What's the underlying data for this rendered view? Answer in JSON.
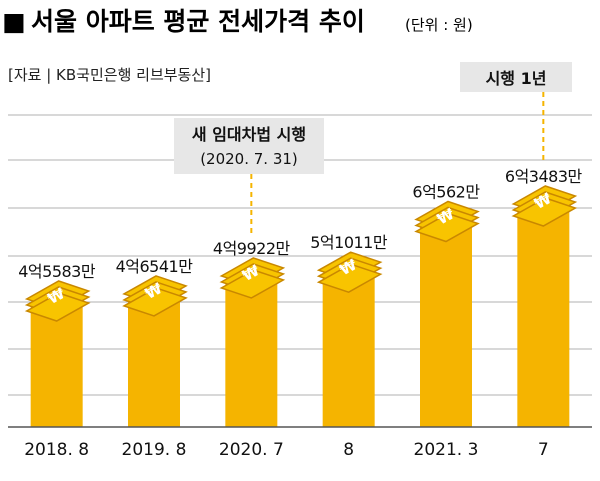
{
  "header": {
    "square": "■",
    "title": "서울 아파트 평균 전세가격 추이",
    "unit": "(단위 : 원)"
  },
  "source": "[자료 | KB국민은행 리브부동산]",
  "colors": {
    "bar": "#f5b400",
    "money": "#f8c400",
    "money_dark": "#c98800",
    "callout_bg": "#e7e7e7",
    "grid": "#b0b0b0",
    "text": "#111111"
  },
  "annotations": [
    {
      "lines": [
        "새 임대차법 시행",
        "(2020. 7. 31)"
      ],
      "category": "2020. 7"
    },
    {
      "lines": [
        "시행 1년"
      ],
      "category": "7"
    }
  ],
  "chart_data": {
    "type": "bar",
    "title": "서울 아파트 평균 전세가격 추이",
    "unit": "(단위 : 원)",
    "categories": [
      "2018. 8",
      "2019. 8",
      "2020. 7",
      "8",
      "2021. 3",
      "7"
    ],
    "values": [
      455830000,
      465410000,
      499220000,
      510110000,
      605620000,
      634830000
    ],
    "value_labels": [
      "4억5583만",
      "4억6541만",
      "4억9922만",
      "5억1011만",
      "6억562만",
      "6억3483만"
    ],
    "grid": true
  }
}
